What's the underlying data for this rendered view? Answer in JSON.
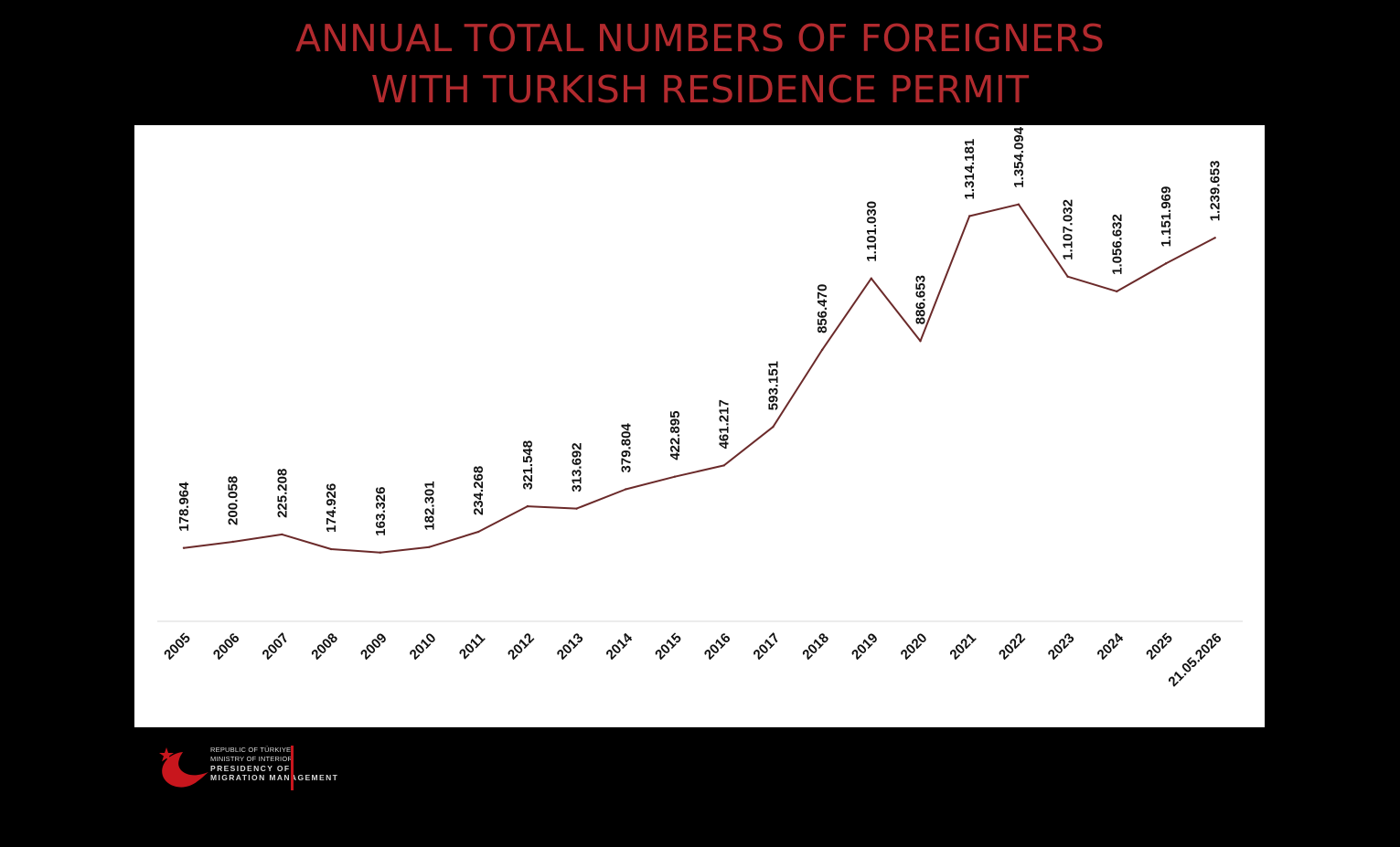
{
  "title": {
    "line1": "ANNUAL TOTAL NUMBERS OF FOREIGNERS",
    "line2": "WITH TURKISH RESIDENCE PERMIT"
  },
  "colors": {
    "title": "#b22a2e",
    "line": "#6b2a2a",
    "background": "#000000",
    "panel": "#ffffff",
    "logo": "#c8161d"
  },
  "logo": {
    "icon": "crescent-star-bird-icon",
    "line1": "REPUBLIC OF TÜRKIYE",
    "line2": "MINISTRY OF INTERIOR",
    "line3": "PRESIDENCY OF",
    "line4": "MIGRATION MANAGEMENT"
  },
  "chart_data": {
    "type": "line",
    "title": "ANNUAL TOTAL NUMBERS OF FOREIGNERS WITH TURKISH RESIDENCE PERMIT",
    "categories": [
      "2005",
      "2006",
      "2007",
      "2008",
      "2009",
      "2010",
      "2011",
      "2012",
      "2013",
      "2014",
      "2015",
      "2016",
      "2017",
      "2018",
      "2019",
      "2020",
      "2021",
      "2022",
      "2023",
      "2024",
      "2025",
      "21.05.2026"
    ],
    "values": [
      178964,
      200058,
      225208,
      174926,
      163326,
      182301,
      234268,
      321548,
      313692,
      379804,
      422895,
      461217,
      593151,
      856470,
      1101030,
      886653,
      1314181,
      1354094,
      1107032,
      1056632,
      1151969,
      1239653
    ],
    "data_labels": [
      "178.964",
      "200.058",
      "225.208",
      "174.926",
      "163.326",
      "182.301",
      "234.268",
      "321.548",
      "313.692",
      "379.804",
      "422.895",
      "461.217",
      "593.151",
      "856.470",
      "1.101.030",
      "886.653",
      "1.314.181",
      "1.354.094",
      "1.107.032",
      "1.056.632",
      "1.151.969",
      "1.239.653"
    ],
    "ylim": [
      0,
      1500000
    ],
    "grid": false,
    "legend": "none"
  }
}
